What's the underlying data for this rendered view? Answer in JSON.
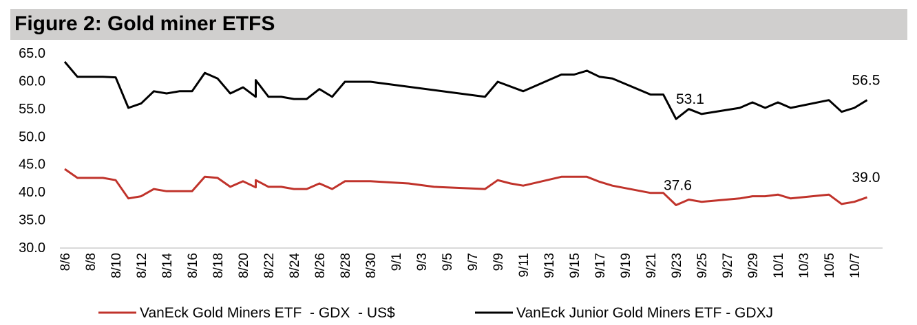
{
  "chart_data": {
    "type": "line",
    "title": "Figure 2: Gold miner ETFS",
    "xlabel": "",
    "ylabel": "",
    "ylim": [
      30,
      65
    ],
    "yticks": [
      "30.0",
      "35.0",
      "40.0",
      "45.0",
      "50.0",
      "55.0",
      "60.0",
      "65.0"
    ],
    "xticks": [
      "8/6",
      "8/8",
      "8/10",
      "8/12",
      "8/14",
      "8/16",
      "8/18",
      "8/20",
      "8/22",
      "8/24",
      "8/26",
      "8/28",
      "8/30",
      "9/1",
      "9/3",
      "9/5",
      "9/7",
      "9/9",
      "9/11",
      "9/13",
      "9/15",
      "9/17",
      "9/19",
      "9/21",
      "9/23",
      "9/25",
      "9/27",
      "9/29",
      "10/1",
      "10/3",
      "10/5",
      "10/7"
    ],
    "grid": false,
    "legend_position": "bottom",
    "series": [
      {
        "name": "VanEck Gold Miners ETF  - GDX  - US$",
        "color": "#c0332b",
        "points": [
          [
            "8/6",
            44.1
          ],
          [
            "8/7",
            42.5
          ],
          [
            "8/9",
            42.5
          ],
          [
            "8/10",
            42.1
          ],
          [
            "8/11",
            38.8
          ],
          [
            "8/12",
            39.2
          ],
          [
            "8/13",
            40.5
          ],
          [
            "8/14",
            40.1
          ],
          [
            "8/16",
            40.1
          ],
          [
            "8/17",
            42.7
          ],
          [
            "8/18",
            42.5
          ],
          [
            "8/19",
            40.9
          ],
          [
            "8/20",
            41.9
          ],
          [
            "8/21",
            40.8
          ],
          [
            "8/21",
            42.1
          ],
          [
            "8/22",
            40.9
          ],
          [
            "8/23",
            40.9
          ],
          [
            "8/24",
            40.5
          ],
          [
            "8/25",
            40.5
          ],
          [
            "8/26",
            41.5
          ],
          [
            "8/27",
            40.5
          ],
          [
            "8/28",
            41.9
          ],
          [
            "8/30",
            41.9
          ],
          [
            "9/2",
            41.5
          ],
          [
            "9/4",
            40.9
          ],
          [
            "9/8",
            40.5
          ],
          [
            "9/9",
            42.1
          ],
          [
            "9/10",
            41.5
          ],
          [
            "9/11",
            41.1
          ],
          [
            "9/14",
            42.7
          ],
          [
            "9/16",
            42.7
          ],
          [
            "9/17",
            41.8
          ],
          [
            "9/18",
            41.1
          ],
          [
            "9/21",
            39.8
          ],
          [
            "9/22",
            39.8
          ],
          [
            "9/23",
            37.6
          ],
          [
            "9/24",
            38.6
          ],
          [
            "9/25",
            38.2
          ],
          [
            "9/28",
            38.8
          ],
          [
            "9/29",
            39.2
          ],
          [
            "9/30",
            39.2
          ],
          [
            "10/1",
            39.5
          ],
          [
            "10/2",
            38.8
          ],
          [
            "10/5",
            39.5
          ],
          [
            "10/6",
            37.8
          ],
          [
            "10/7",
            38.2
          ],
          [
            "10/8",
            39.0
          ]
        ],
        "labels": [
          {
            "date": "9/23",
            "text": "37.6",
            "dx": -18
          },
          {
            "date": "10/8",
            "text": "39.0",
            "dx": -22
          }
        ]
      },
      {
        "name": "VanEck Junior Gold Miners ETF - GDXJ",
        "color": "#000000",
        "points": [
          [
            "8/6",
            63.4
          ],
          [
            "8/7",
            60.7
          ],
          [
            "8/9",
            60.7
          ],
          [
            "8/10",
            60.6
          ],
          [
            "8/11",
            55.1
          ],
          [
            "8/12",
            55.9
          ],
          [
            "8/13",
            58.1
          ],
          [
            "8/14",
            57.7
          ],
          [
            "8/15",
            58.1
          ],
          [
            "8/16",
            58.1
          ],
          [
            "8/17",
            61.4
          ],
          [
            "8/18",
            60.4
          ],
          [
            "8/19",
            57.7
          ],
          [
            "8/20",
            58.8
          ],
          [
            "8/21",
            57.1
          ],
          [
            "8/21",
            60.1
          ],
          [
            "8/22",
            57.1
          ],
          [
            "8/23",
            57.1
          ],
          [
            "8/24",
            56.7
          ],
          [
            "8/25",
            56.7
          ],
          [
            "8/26",
            58.5
          ],
          [
            "8/27",
            57.1
          ],
          [
            "8/28",
            59.8
          ],
          [
            "8/30",
            59.8
          ],
          [
            "9/8",
            57.1
          ],
          [
            "9/9",
            59.8
          ],
          [
            "9/11",
            58.1
          ],
          [
            "9/14",
            61.1
          ],
          [
            "9/15",
            61.1
          ],
          [
            "9/16",
            61.8
          ],
          [
            "9/17",
            60.7
          ],
          [
            "9/18",
            60.4
          ],
          [
            "9/21",
            57.5
          ],
          [
            "9/22",
            57.5
          ],
          [
            "9/23",
            53.1
          ],
          [
            "9/24",
            54.9
          ],
          [
            "9/25",
            54.0
          ],
          [
            "9/28",
            55.1
          ],
          [
            "9/29",
            56.1
          ],
          [
            "9/30",
            55.1
          ],
          [
            "10/1",
            56.1
          ],
          [
            "10/2",
            55.1
          ],
          [
            "10/5",
            56.5
          ],
          [
            "10/6",
            54.4
          ],
          [
            "10/7",
            55.1
          ],
          [
            "10/8",
            56.5
          ]
        ],
        "labels": [
          {
            "date": "9/23",
            "text": "53.1",
            "dx": 0
          },
          {
            "date": "10/8",
            "text": "56.5",
            "dx": -22
          }
        ]
      }
    ]
  }
}
